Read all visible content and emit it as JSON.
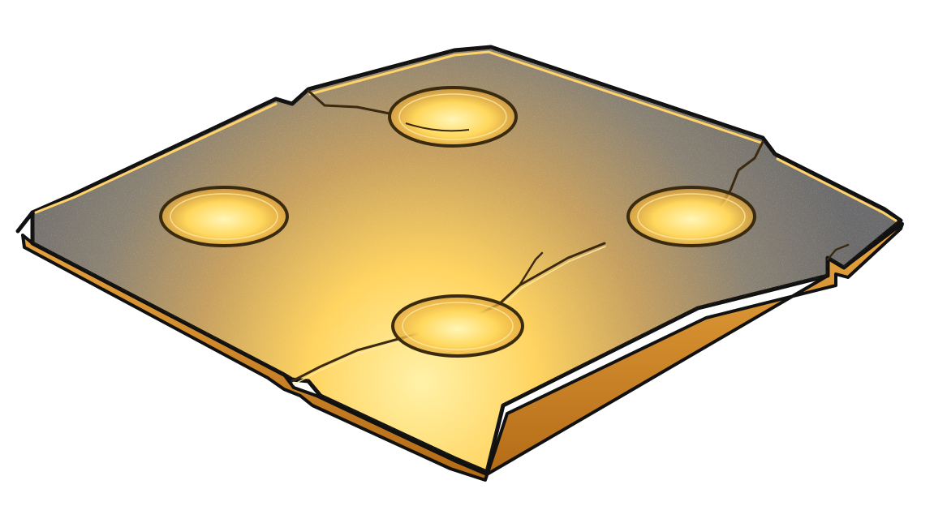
{
  "scene": {
    "asset": "cracked-stone-floor-tile",
    "background": "#ffffff",
    "socket_count": 4
  },
  "colors": {
    "outline": "#111111",
    "stone_dark": "#6b6b6d",
    "stone_mid": "#8a8274",
    "glow_core": "#fff2a8",
    "glow_mid": "#ffd460",
    "glow_edge": "#f0a530",
    "rim_light": "#ffd36a",
    "crack": "#3b2a12",
    "socket_ring": "#3a2a10"
  }
}
